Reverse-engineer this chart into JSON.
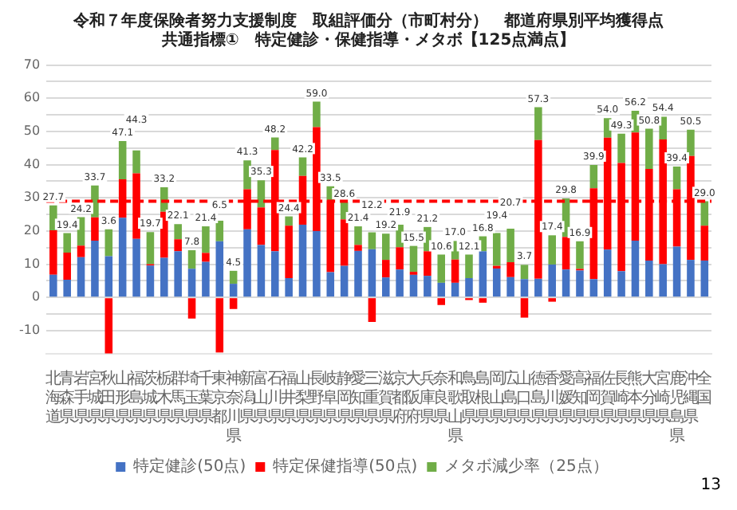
{
  "chart_data": {
    "type": "bar",
    "stacked": true,
    "title": "令和７年度保険者努力支援制度　取組評価分（市町村分）　都道府県別平均獲得点",
    "subtitle": "共通指標①　特定健診・保健指導・メタボ【125点満点】",
    "categories": [
      "北海道",
      "青森県",
      "岩手県",
      "宮城県",
      "秋田県",
      "山形県",
      "福島県",
      "茨城県",
      "栃木県",
      "群馬県",
      "埼玉県",
      "千葉県",
      "東京都",
      "神奈川県",
      "新潟県",
      "富山県",
      "石川県",
      "福井県",
      "山梨県",
      "長野県",
      "岐阜県",
      "静岡県",
      "愛知県",
      "三重県",
      "滋賀県",
      "京都府",
      "大阪府",
      "兵庫県",
      "奈良県",
      "和歌山県",
      "鳥取県",
      "島根県",
      "岡山県",
      "広島県",
      "山口県",
      "徳島県",
      "香川県",
      "愛媛県",
      "高知県",
      "福岡県",
      "佐賀県",
      "長崎県",
      "熊本県",
      "大分県",
      "宮崎県",
      "鹿児島県",
      "沖縄県",
      "全国"
    ],
    "series": [
      {
        "name": "特定健診(50点)",
        "color": "#4472c4",
        "values": [
          6.8,
          5.3,
          12.1,
          17.1,
          12.4,
          24.0,
          17.6,
          9.6,
          11.9,
          13.9,
          8.6,
          10.7,
          16.9,
          4.1,
          20.5,
          15.8,
          13.9,
          5.8,
          21.9,
          20.0,
          7.6,
          9.5,
          14.0,
          14.5,
          6.0,
          8.4,
          6.8,
          6.5,
          4.4,
          4.4,
          5.8,
          13.9,
          8.7,
          6.1,
          5.5,
          5.6,
          9.9,
          8.4,
          8.1,
          5.5,
          14.4,
          7.9,
          17.1,
          11.1,
          10.0,
          15.3,
          11.3,
          11.1
        ]
      },
      {
        "name": "特定保健指導(50点)",
        "color": "#ff0000",
        "values": [
          13.4,
          8.2,
          3.5,
          7.0,
          -16.9,
          11.6,
          19.8,
          0.4,
          13.9,
          3.6,
          -6.4,
          2.7,
          -16.6,
          -3.5,
          12.1,
          11.3,
          30.5,
          15.8,
          14.7,
          31.3,
          21.7,
          14.0,
          1.8,
          -7.4,
          5.3,
          6.7,
          0.9,
          7.4,
          -2.3,
          7.0,
          -0.8,
          -1.6,
          0.8,
          4.5,
          -6.1,
          41.8,
          -1.3,
          9.8,
          0.5,
          27.4,
          33.7,
          32.6,
          32.6,
          27.6,
          37.6,
          17.3,
          31.3,
          10.5
        ]
      },
      {
        "name": "メタボ減少率（25点）",
        "color": "#70ad47",
        "values": [
          7.5,
          5.9,
          8.6,
          9.6,
          8.1,
          11.5,
          6.9,
          9.7,
          7.4,
          4.6,
          5.6,
          8.0,
          6.2,
          3.9,
          8.7,
          8.2,
          3.8,
          2.8,
          5.6,
          7.7,
          4.2,
          5.1,
          5.6,
          5.1,
          7.9,
          6.8,
          7.8,
          7.3,
          8.5,
          5.6,
          7.1,
          4.5,
          9.9,
          10.1,
          4.3,
          9.9,
          8.8,
          11.6,
          8.3,
          7.0,
          5.9,
          8.8,
          6.5,
          12.1,
          6.8,
          6.8,
          7.9,
          7.4
        ]
      }
    ],
    "totals": [
      "27.7",
      "19.4",
      "24.2",
      "33.7",
      "3.6",
      "47.1",
      "44.3",
      "19.7",
      "33.2",
      "22.1",
      "7.8",
      "21.4",
      "6.5",
      "4.5",
      "41.3",
      "35.3",
      "48.2",
      "24.4",
      "42.2",
      "59.0",
      "33.5",
      "28.6",
      "21.4",
      "12.2",
      "19.2",
      "21.9",
      "15.5",
      "21.2",
      "10.6",
      "17.0",
      "12.1",
      "16.8",
      "19.4",
      "20.7",
      "3.7",
      "57.3",
      "17.4",
      "29.8",
      "16.9",
      "39.9",
      "54.0",
      "49.3",
      "56.2",
      "50.8",
      "54.4",
      "39.4",
      "50.5",
      "29.0"
    ],
    "ylim": [
      -17,
      70
    ],
    "yticks": [
      -10,
      {
        "value": -5,
        "label": null
      },
      0,
      {
        "value": 5,
        "label": null
      },
      10,
      {
        "value": 15,
        "label": null
      },
      20,
      {
        "value": 25,
        "label": null
      },
      30,
      {
        "value": 35,
        "label": null
      },
      40,
      {
        "value": 45,
        "label": null
      },
      50,
      {
        "value": 55,
        "label": null
      },
      60,
      {
        "value": 65,
        "label": null
      },
      70
    ],
    "grid": "y",
    "legend": "bottom",
    "ref_lines": [
      {
        "axis": "y",
        "value": 29.0,
        "color": "#ff0000",
        "line_style": "dashed"
      }
    ],
    "annotations": [
      "13"
    ]
  }
}
